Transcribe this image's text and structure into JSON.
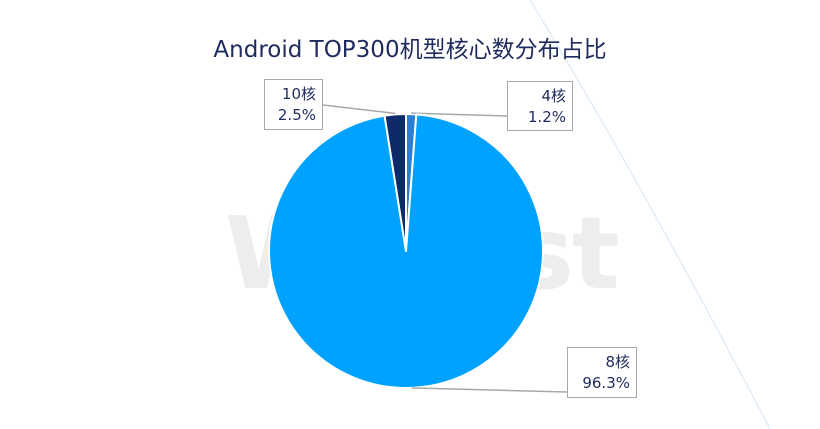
{
  "chart_data": {
    "type": "pie",
    "title": "Android TOP300机型核心数分布占比",
    "slices": [
      {
        "label": "4核",
        "value": 1.2,
        "value_label": "1.2%",
        "color": "#2b7fd4"
      },
      {
        "label": "8核",
        "value": 96.3,
        "value_label": "96.3%",
        "color": "#00a2ff"
      },
      {
        "label": "10核",
        "value": 2.5,
        "value_label": "2.5%",
        "color": "#0d2a6b"
      }
    ],
    "start": "12 o'clock, clockwise",
    "legend": "none (callout labels)"
  },
  "watermark": "WeTest",
  "colors": {
    "title_text": "#1f2b5c",
    "label_text": "#1f2b5c",
    "leader_line": "#a8a8a8"
  }
}
